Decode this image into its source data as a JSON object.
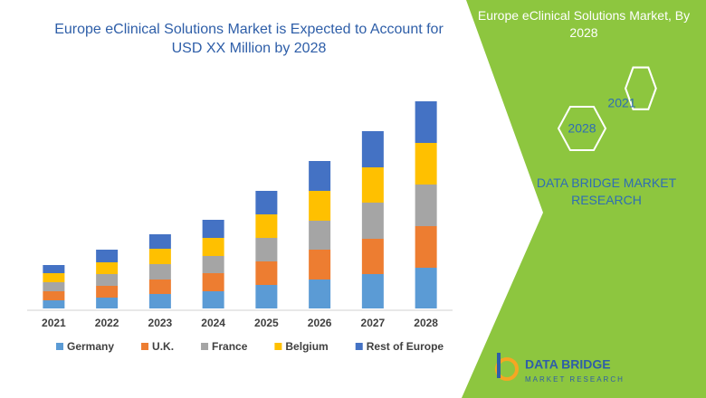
{
  "chart_data": {
    "type": "bar",
    "stacked": true,
    "title": "Europe eClinical Solutions Market is Expected to Account for USD XX Million by 2028",
    "categories": [
      "2021",
      "2022",
      "2023",
      "2024",
      "2025",
      "2026",
      "2027",
      "2028"
    ],
    "series": [
      {
        "name": "Germany",
        "color": "#5b9bd5",
        "values": [
          9,
          12,
          16,
          19,
          26,
          32,
          38,
          45
        ]
      },
      {
        "name": "U.K.",
        "color": "#ed7d31",
        "values": [
          10,
          13,
          16,
          20,
          26,
          33,
          39,
          46
        ]
      },
      {
        "name": "France",
        "color": "#a5a5a5",
        "values": [
          10,
          13,
          17,
          19,
          26,
          32,
          40,
          46
        ]
      },
      {
        "name": "Belgium",
        "color": "#ffc000",
        "values": [
          10,
          13,
          17,
          20,
          26,
          33,
          39,
          46
        ]
      },
      {
        "name": "Rest of Europe",
        "color": "#4472c4",
        "values": [
          9,
          14,
          16,
          20,
          26,
          33,
          40,
          46
        ]
      }
    ],
    "ylim": [
      0,
      240
    ],
    "legend": "bottom"
  },
  "side_panel": {
    "title": "Europe eClinical Solutions Market, By 2028",
    "hexagons": [
      "2021",
      "2028"
    ],
    "brand": "DATA BRIDGE MARKET RESEARCH"
  },
  "logo": {
    "name": "DATA BRIDGE",
    "tagline": "MARKET RESEARCH"
  }
}
